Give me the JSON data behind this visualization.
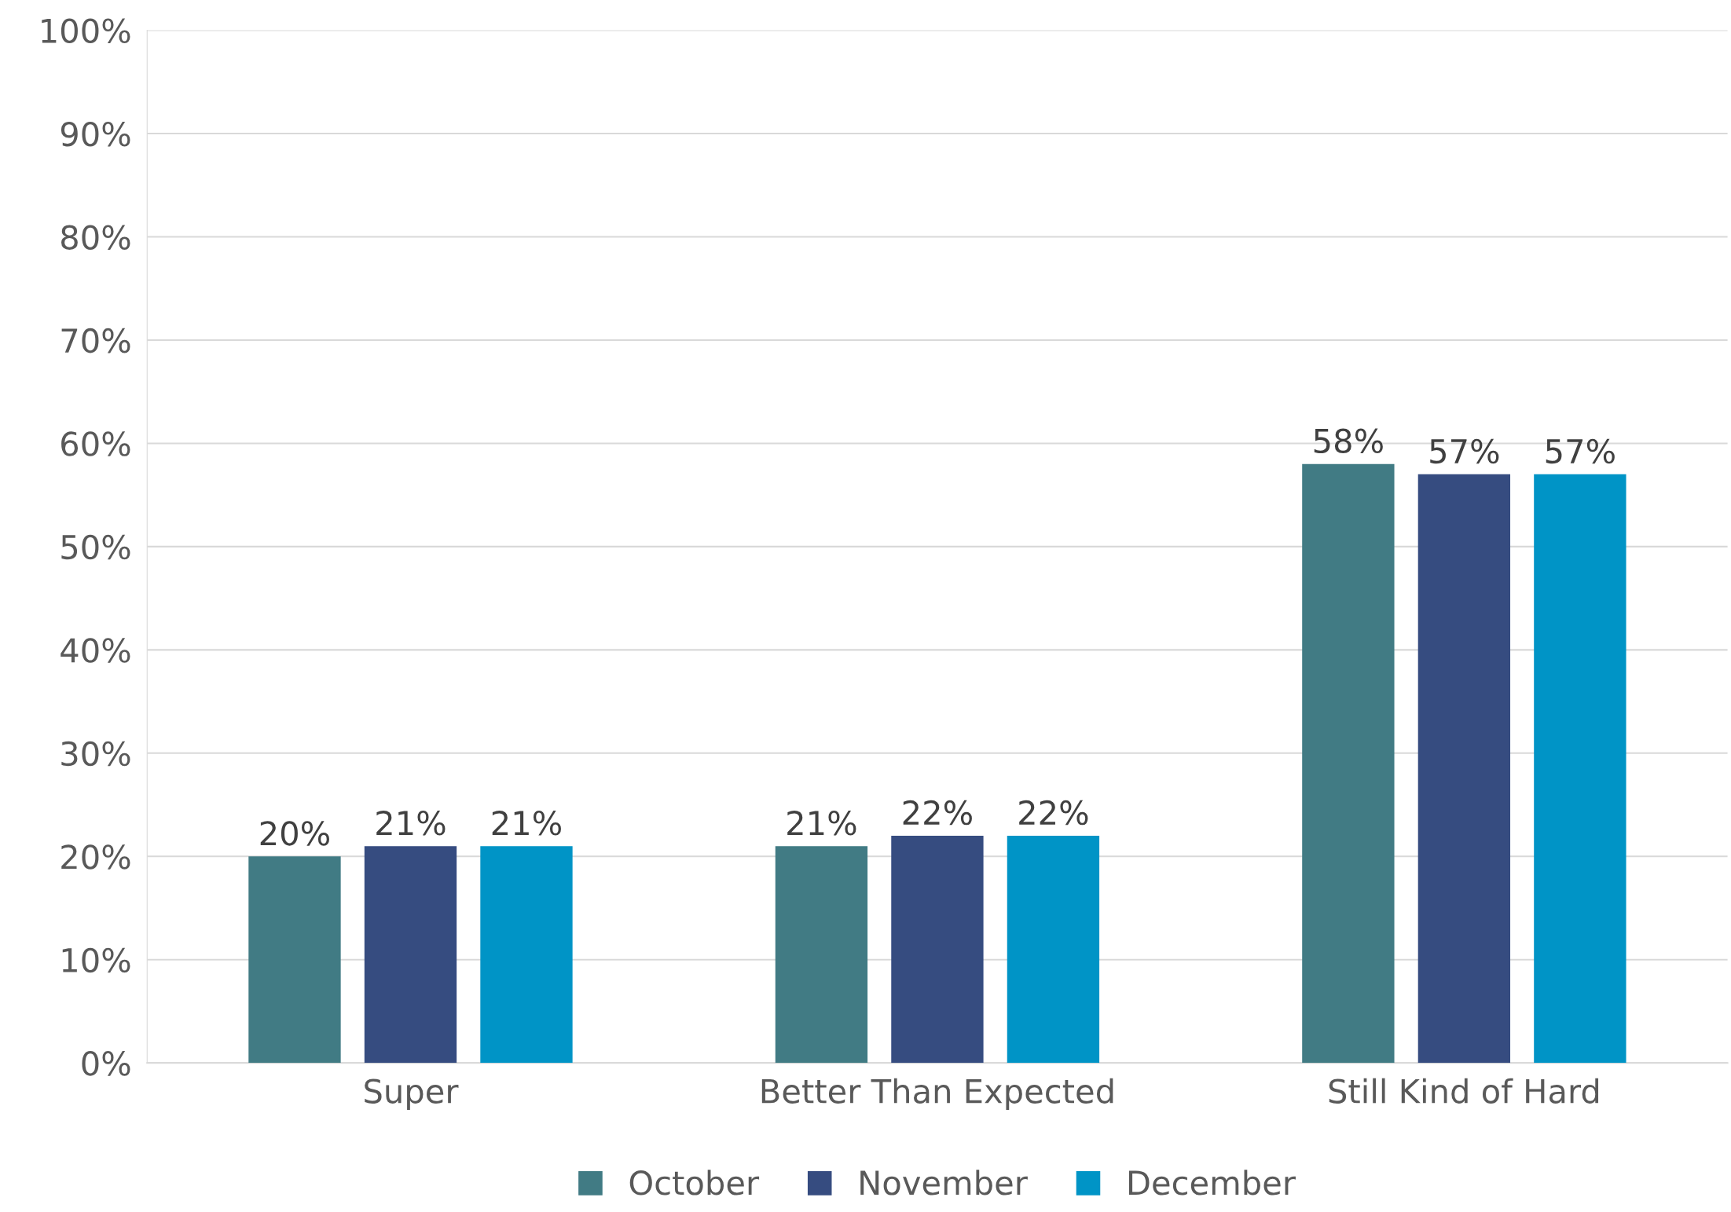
{
  "chart_data": {
    "type": "bar",
    "categories": [
      "Super",
      "Better Than Expected",
      "Still Kind of Hard"
    ],
    "series": [
      {
        "name": "October",
        "color": "#417b84",
        "values": [
          20,
          21,
          58
        ],
        "value_labels": [
          "20%",
          "21%",
          "58%"
        ]
      },
      {
        "name": "November",
        "color": "#364c80",
        "values": [
          21,
          22,
          57
        ],
        "value_labels": [
          "21%",
          "22%",
          "57%"
        ]
      },
      {
        "name": "December",
        "color": "#0094c6",
        "values": [
          21,
          22,
          57
        ],
        "value_labels": [
          "21%",
          "22%",
          "57%"
        ]
      }
    ],
    "ylim": [
      0,
      100
    ],
    "yticks": [
      {
        "value": 0,
        "label": "0%"
      },
      {
        "value": 10,
        "label": "10%"
      },
      {
        "value": 20,
        "label": "20%"
      },
      {
        "value": 30,
        "label": "30%"
      },
      {
        "value": 40,
        "label": "40%"
      },
      {
        "value": 50,
        "label": "50%"
      },
      {
        "value": 60,
        "label": "60%"
      },
      {
        "value": 70,
        "label": "70%"
      },
      {
        "value": 80,
        "label": "80%"
      },
      {
        "value": 90,
        "label": "90%"
      },
      {
        "value": 100,
        "label": "100%"
      }
    ],
    "grid": "y",
    "legend": "bottom"
  }
}
